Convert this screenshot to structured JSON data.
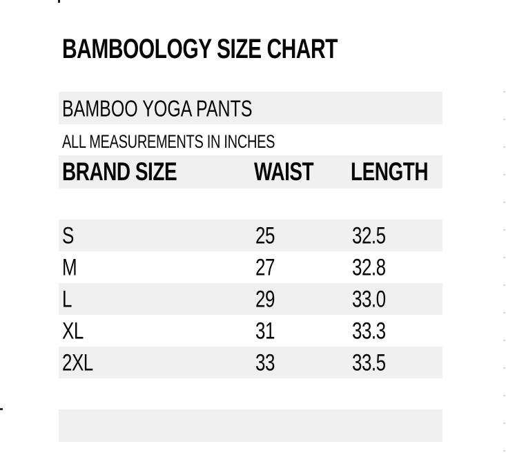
{
  "colors": {
    "row_stripe": "#f0f0f1",
    "text": "#060606",
    "background": "#ffffff"
  },
  "chart_data": {
    "type": "table",
    "title": "BAMBOOLOGY SIZE CHART",
    "subtitle": "BAMBOO YOGA PANTS",
    "note": "ALL MEASUREMENTS IN INCHES",
    "columns": [
      "BRAND SIZE",
      "WAIST",
      "LENGTH"
    ],
    "rows": [
      [
        "S",
        "25",
        "32.5"
      ],
      [
        "M",
        "27",
        "32.8"
      ],
      [
        "L",
        "29",
        "33.0"
      ],
      [
        "XL",
        "31",
        "33.3"
      ],
      [
        "2XL",
        "33",
        "33.5"
      ]
    ],
    "layout_hints": {
      "striped_rows": [
        "S",
        "L",
        "2XL"
      ],
      "header_shaded": true,
      "units": "inches"
    }
  }
}
